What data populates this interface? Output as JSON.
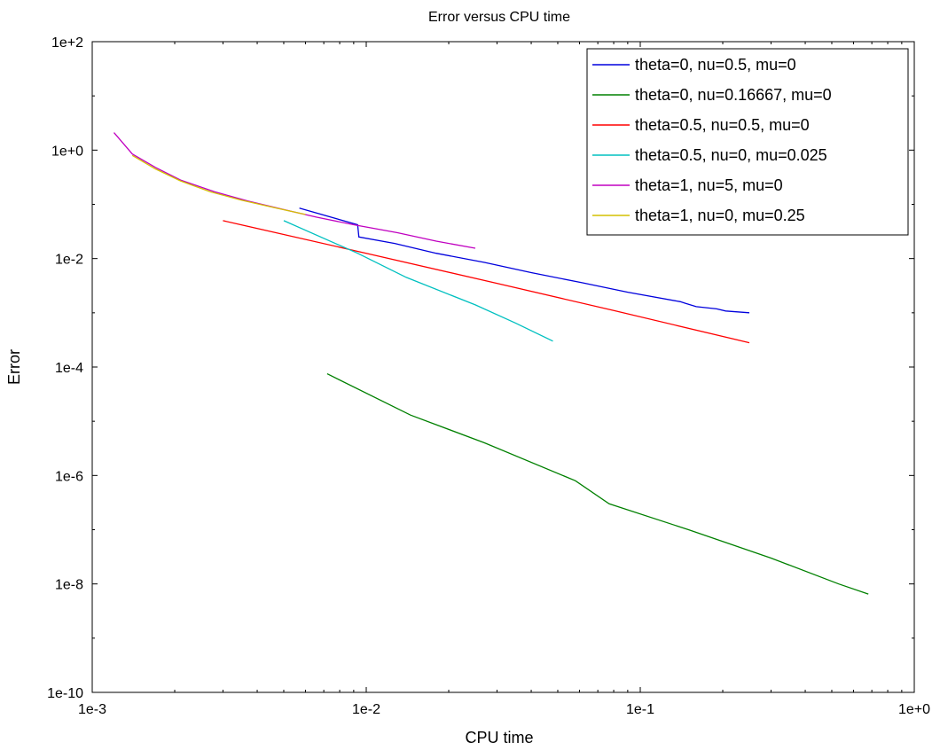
{
  "chart_data": {
    "type": "line",
    "title": "Error versus CPU time",
    "xlabel": "CPU time",
    "ylabel": "Error",
    "xscale": "log",
    "yscale": "log",
    "xlim": [
      0.001,
      1
    ],
    "ylim": [
      1e-10,
      100
    ],
    "x_ticks": [
      {
        "value": 0.001,
        "label": "1e-3"
      },
      {
        "value": 0.01,
        "label": "1e-2"
      },
      {
        "value": 0.1,
        "label": "1e-1"
      },
      {
        "value": 1,
        "label": "1e+0"
      }
    ],
    "y_ticks": [
      {
        "value": 1e-10,
        "label": "1e-10"
      },
      {
        "value": 1e-08,
        "label": "1e-8"
      },
      {
        "value": 1e-06,
        "label": "1e-6"
      },
      {
        "value": 0.0001,
        "label": "1e-4"
      },
      {
        "value": 0.01,
        "label": "1e-2"
      },
      {
        "value": 1,
        "label": "1e+0"
      },
      {
        "value": 100,
        "label": "1e+2"
      }
    ],
    "grid": false,
    "legend_position": "top-right",
    "series": [
      {
        "name": "theta=0, nu=0.5, mu=0",
        "color": "#0000dd",
        "x": [
          0.0057,
          0.0093,
          0.0094,
          0.0127,
          0.018,
          0.027,
          0.04,
          0.061,
          0.09,
          0.14,
          0.146,
          0.16,
          0.19,
          0.205,
          0.25
        ],
        "y": [
          0.085,
          0.042,
          0.025,
          0.019,
          0.0125,
          0.0085,
          0.0055,
          0.0036,
          0.0024,
          0.0016,
          0.0015,
          0.0013,
          0.00118,
          0.00108,
          0.001
        ]
      },
      {
        "name": "theta=0, nu=0.16667, mu=0",
        "color": "#008000",
        "x": [
          0.0072,
          0.0145,
          0.027,
          0.058,
          0.077,
          0.15,
          0.3,
          0.53,
          0.68
        ],
        "y": [
          7.5e-05,
          1.3e-05,
          4e-06,
          8e-07,
          3e-07,
          1e-07,
          3e-08,
          1e-08,
          6.5e-09
        ]
      },
      {
        "name": "theta=0.5, nu=0.5, mu=0",
        "color": "#ff0000",
        "x": [
          0.003,
          0.01,
          0.03,
          0.08,
          0.25
        ],
        "y": [
          0.05,
          0.0125,
          0.0035,
          0.0011,
          0.00028
        ]
      },
      {
        "name": "theta=0.5, nu=0, mu=0.025",
        "color": "#00c0c0",
        "x": [
          0.005,
          0.0093,
          0.014,
          0.025,
          0.035,
          0.048
        ],
        "y": [
          0.05,
          0.0125,
          0.0045,
          0.0014,
          0.00065,
          0.0003
        ]
      },
      {
        "name": "theta=1, nu=5, mu=0",
        "color": "#c000c0",
        "x": [
          0.0012,
          0.0014,
          0.0017,
          0.0021,
          0.0028,
          0.0037,
          0.005,
          0.0066,
          0.009,
          0.013,
          0.018,
          0.025
        ],
        "y": [
          2.1,
          0.85,
          0.48,
          0.28,
          0.17,
          0.115,
          0.08,
          0.058,
          0.042,
          0.03,
          0.021,
          0.0155
        ]
      },
      {
        "name": "theta=1, nu=0, mu=0.25",
        "color": "#d4c000",
        "x": [
          0.0014,
          0.0017,
          0.0021,
          0.0027,
          0.0035,
          0.0047,
          0.006
        ],
        "y": [
          0.8,
          0.45,
          0.27,
          0.17,
          0.12,
          0.085,
          0.065
        ]
      }
    ]
  }
}
